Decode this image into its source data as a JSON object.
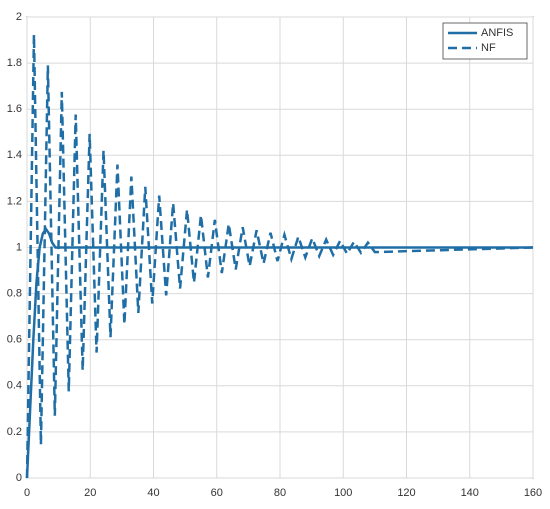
{
  "chart_data": {
    "type": "line",
    "xlim": [
      0,
      160
    ],
    "xticks": [
      0,
      20,
      40,
      60,
      80,
      100,
      120,
      140,
      160
    ],
    "ylim": [
      0,
      2
    ],
    "yticks": [
      0,
      0.2,
      0.4,
      0.6,
      0.8,
      1,
      1.2,
      1.4,
      1.6,
      1.8,
      2
    ],
    "grid": true,
    "legend": "top-right",
    "series": [
      {
        "name": "ANFIS",
        "color": "#1f6ea6",
        "style": "solid",
        "x": [
          0,
          1,
          2,
          3,
          4,
          5,
          6,
          7,
          8,
          9,
          10,
          160
        ],
        "values": [
          0,
          0.3,
          0.6,
          0.85,
          1.0,
          1.06,
          1.08,
          1.06,
          1.02,
          1.0,
          1.0,
          1.0
        ]
      },
      {
        "name": "NF",
        "color": "#1f6ea6",
        "style": "dashed",
        "x": [
          0,
          2.2,
          4.4,
          6.6,
          8.8,
          11,
          13.2,
          15.4,
          17.6,
          19.8,
          22,
          24.2,
          26.4,
          28.6,
          30.8,
          33,
          35.2,
          37.4,
          39.6,
          41.8,
          44,
          46.2,
          48.4,
          50.6,
          52.8,
          55,
          57.2,
          59.4,
          61.6,
          63.8,
          66,
          68.2,
          70.4,
          72.6,
          74.8,
          77,
          79.2,
          81.4,
          83.6,
          85.8,
          88,
          90.2,
          92.4,
          94.6,
          96.8,
          99,
          101.2,
          103.4,
          105.6,
          107.8,
          110,
          160
        ],
        "values": [
          0,
          1.924,
          0.145,
          1.79,
          0.27,
          1.675,
          0.376,
          1.577,
          0.467,
          1.493,
          0.544,
          1.421,
          0.611,
          1.36,
          0.667,
          1.308,
          0.716,
          1.263,
          0.757,
          1.225,
          0.792,
          1.192,
          0.822,
          1.164,
          0.848,
          1.14,
          0.87,
          1.12,
          0.889,
          1.102,
          0.905,
          1.088,
          0.919,
          1.075,
          0.931,
          1.064,
          0.941,
          1.055,
          0.95,
          1.047,
          0.957,
          1.04,
          0.963,
          1.034,
          0.968,
          1.029,
          0.973,
          1.025,
          0.977,
          1.021,
          0.98,
          1.0
        ]
      }
    ]
  }
}
